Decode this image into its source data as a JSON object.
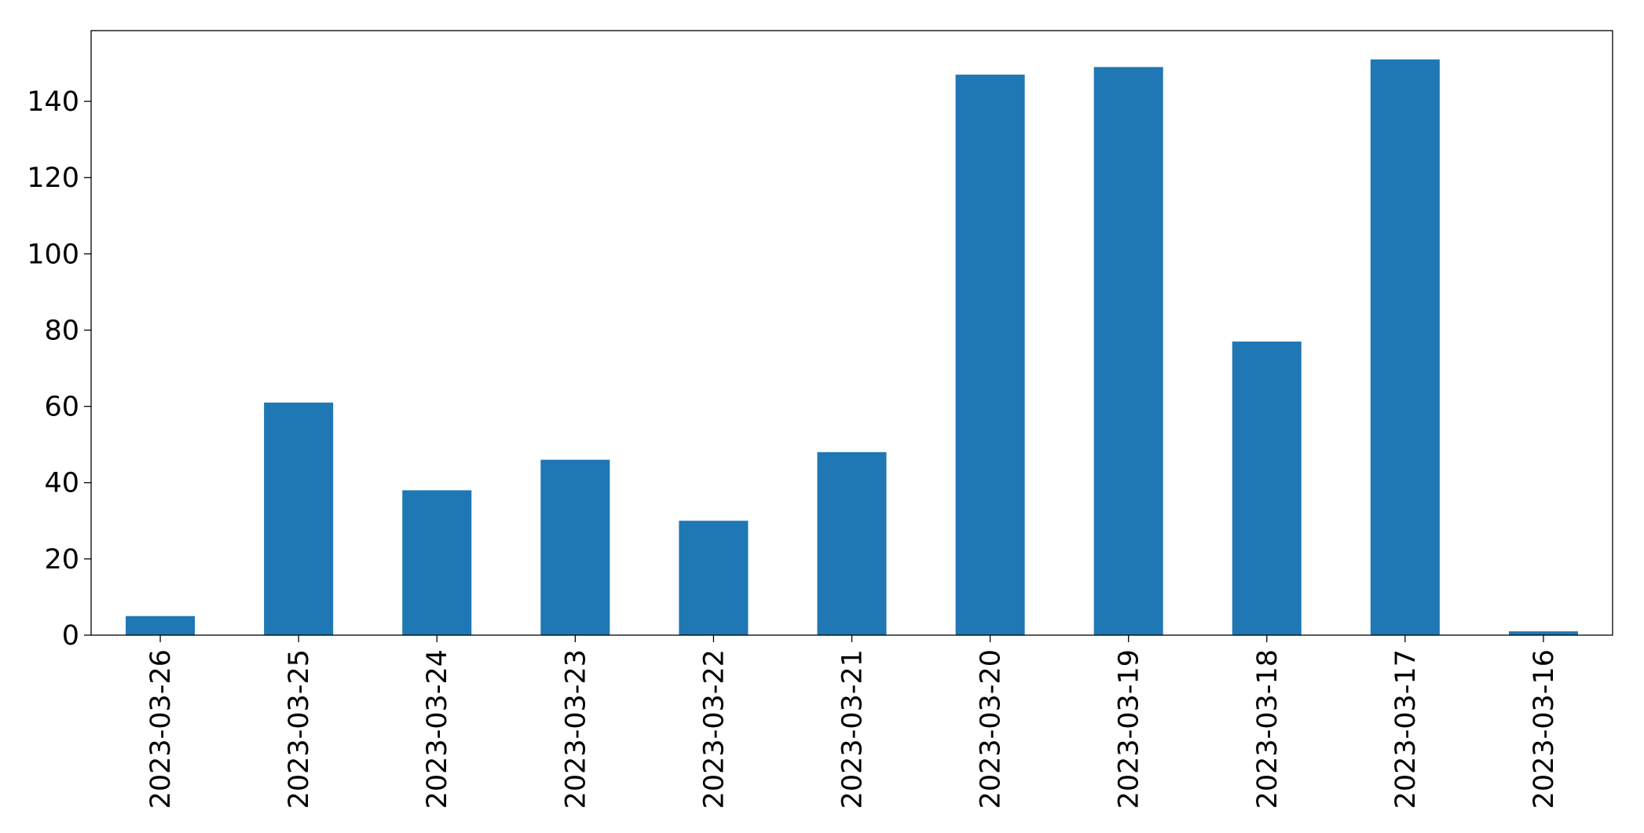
{
  "chart_data": {
    "type": "bar",
    "categories": [
      "2023-03-26",
      "2023-03-25",
      "2023-03-24",
      "2023-03-23",
      "2023-03-22",
      "2023-03-21",
      "2023-03-20",
      "2023-03-19",
      "2023-03-18",
      "2023-03-17",
      "2023-03-16"
    ],
    "values": [
      5,
      61,
      38,
      46,
      30,
      48,
      147,
      149,
      77,
      151,
      1
    ],
    "color": "#1f77b4",
    "ylim": [
      0,
      158.55
    ],
    "yticks": [
      0,
      20,
      40,
      60,
      80,
      100,
      120,
      140
    ],
    "grid": false
  }
}
